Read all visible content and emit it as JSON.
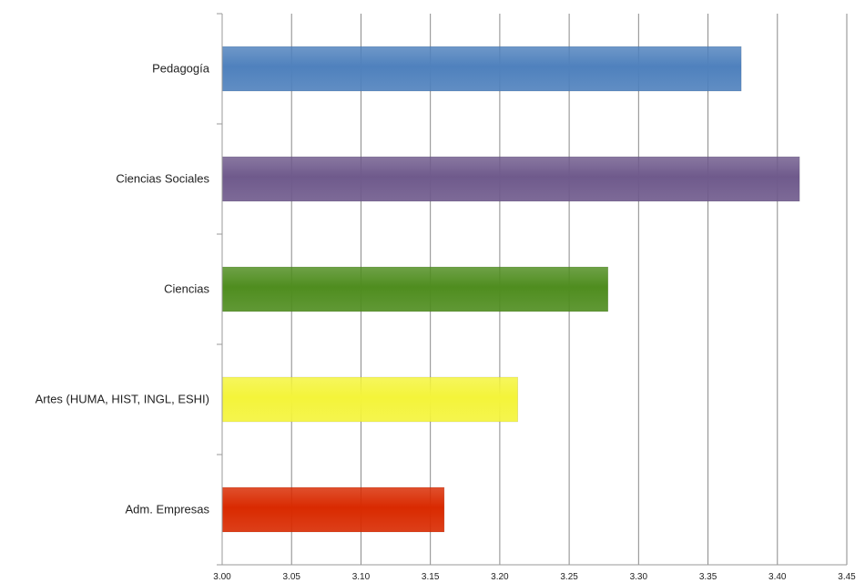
{
  "chart_data": {
    "type": "bar",
    "orientation": "horizontal",
    "title": "",
    "xlabel": "",
    "ylabel": "",
    "xlim": [
      3.0,
      3.45
    ],
    "x_ticks": [
      "3.00",
      "3.05",
      "3.10",
      "3.15",
      "3.20",
      "3.25",
      "3.30",
      "3.35",
      "3.40",
      "3.45"
    ],
    "grid": "vertical",
    "legend": "none",
    "categories": [
      "Pedagogía",
      "Ciencias Sociales",
      "Ciencias",
      "Artes (HUMA, HIST, INGL, ESHI)",
      "Adm. Empresas"
    ],
    "values": [
      3.374,
      3.416,
      3.278,
      3.213,
      3.16
    ],
    "colors": [
      "#4f81bd",
      "#6f5a8c",
      "#4f8d1f",
      "#f4f43a",
      "#d92a00"
    ]
  }
}
